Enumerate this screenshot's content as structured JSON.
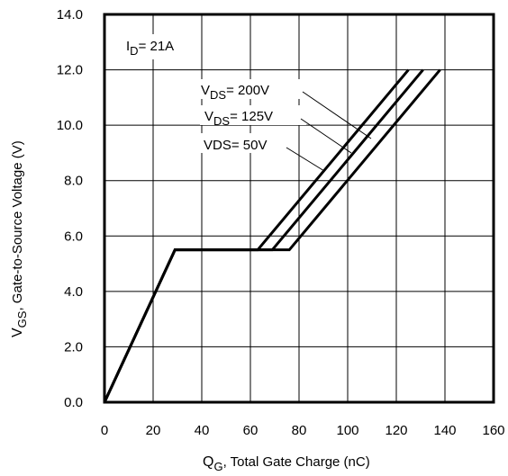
{
  "chart_data": {
    "type": "line",
    "xlabel": {
      "main": "Q",
      "sub": "G",
      "rest": ",  Total Gate Charge (nC)"
    },
    "ylabel": {
      "main": "V",
      "sub": "GS",
      "rest": ", Gate-to-Source Voltage (V)"
    },
    "xlim": [
      0,
      160
    ],
    "ylim": [
      0,
      14
    ],
    "xticks": [
      "0",
      "20",
      "40",
      "60",
      "80",
      "100",
      "120",
      "140",
      "160"
    ],
    "yticks": [
      "0.0",
      "2.0",
      "4.0",
      "6.0",
      "8.0",
      "10.0",
      "12.0",
      "14.0"
    ],
    "grid": true,
    "condition": {
      "main": "I",
      "sub": "D",
      "rest": "= 21A"
    },
    "series": [
      {
        "name": "VDS= 200V",
        "label_main": "V",
        "label_sub": "DS",
        "label_rest": "= 200V",
        "x": [
          0,
          29,
          63,
          125
        ],
        "y": [
          0,
          5.5,
          5.5,
          12
        ]
      },
      {
        "name": "VDS= 125V",
        "label_main": "V",
        "label_sub": "DS",
        "label_rest": "= 125V",
        "x": [
          0,
          29,
          69,
          131
        ],
        "y": [
          0,
          5.5,
          5.5,
          12
        ]
      },
      {
        "name": "VDS= 50V",
        "label_main": "VDS= 50V",
        "label_sub": "",
        "label_rest": "",
        "x": [
          0,
          29,
          76,
          138
        ],
        "y": [
          0,
          5.5,
          5.5,
          12
        ]
      }
    ]
  }
}
